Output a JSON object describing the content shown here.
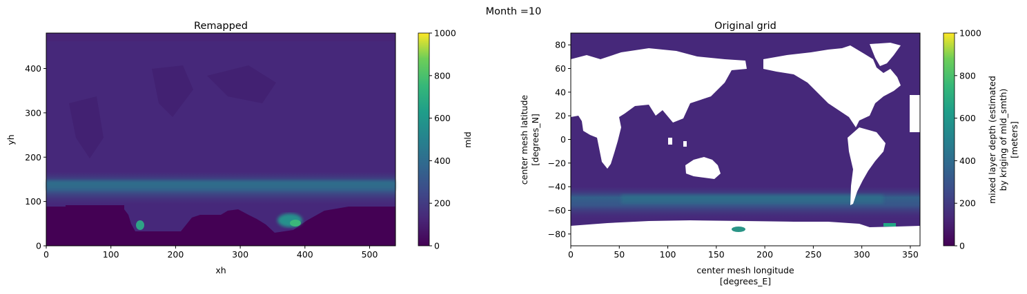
{
  "suptitle": "Month =10",
  "chart_data": [
    {
      "type": "heatmap",
      "title": "Remapped",
      "xlabel": "xh",
      "ylabel": "yh",
      "xlim": [
        0,
        540
      ],
      "ylim": [
        0,
        480
      ],
      "xticks": [
        "0",
        "100",
        "200",
        "300",
        "400",
        "500"
      ],
      "yticks": [
        "0",
        "100",
        "200",
        "300",
        "400"
      ],
      "colorbar": {
        "label": "mld",
        "range": [
          0,
          1000
        ],
        "ticks": [
          "0",
          "200",
          "400",
          "600",
          "800",
          "1000"
        ],
        "colormap": "viridis"
      },
      "features": [
        {
          "name": "southern-ocean-deep-band",
          "yh": [
            100,
            160
          ],
          "mld_approx": 300
        },
        {
          "name": "weddell-deep-patch",
          "xh": [
            140,
            150
          ],
          "yh": [
            35,
            55
          ],
          "mld_approx": 450
        },
        {
          "name": "ross-deep-patch",
          "xh": [
            360,
            400
          ],
          "yh": [
            35,
            60
          ],
          "mld_approx": 500
        }
      ]
    },
    {
      "type": "heatmap",
      "title": "Original grid",
      "xlabel_lines": [
        "center mesh longitude",
        "[degrees_E]"
      ],
      "ylabel_lines": [
        "center mesh latitude",
        "[degrees_N]"
      ],
      "xlim": [
        0,
        360
      ],
      "ylim": [
        -90,
        90
      ],
      "xticks": [
        "0",
        "50",
        "100",
        "150",
        "200",
        "250",
        "300",
        "350"
      ],
      "yticks": [
        "−80",
        "−60",
        "−40",
        "−20",
        "0",
        "20",
        "40",
        "60",
        "80"
      ],
      "colorbar": {
        "label_lines": [
          "mixed layer depth (estimated",
          "by kriging of mld_smth)",
          "[meters]"
        ],
        "range": [
          0,
          1000
        ],
        "ticks": [
          "0",
          "200",
          "400",
          "600",
          "800",
          "1000"
        ],
        "colormap": "viridis"
      },
      "features": [
        {
          "name": "southern-ocean-deep-band",
          "lat": [
            -60,
            -40
          ],
          "mld_approx": 300
        },
        {
          "name": "ross-sea-deep-patch",
          "lon": [
            165,
            180
          ],
          "lat": [
            -78,
            -72
          ],
          "mld_approx": 500
        }
      ]
    }
  ],
  "colors": {
    "viridis_0": "#440154",
    "viridis_200": "#3b528b",
    "viridis_400": "#21918c",
    "viridis_600": "#5ec962",
    "viridis_1000": "#fde725",
    "land": "#ffffff"
  }
}
